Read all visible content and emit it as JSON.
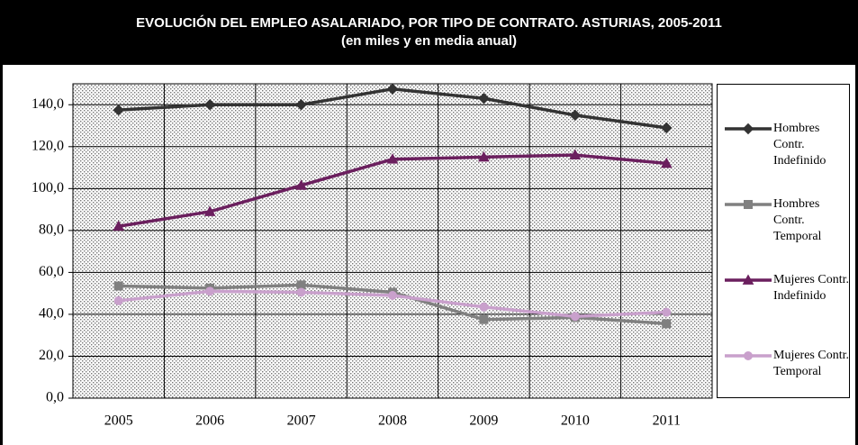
{
  "chart_data": {
    "type": "line",
    "title": "EVOLUCIÓN DEL EMPLEO ASALARIADO, POR TIPO DE CONTRATO. ASTURIAS, 2005-2011",
    "subtitle": "(en miles y en media anual)",
    "categories": [
      "2005",
      "2006",
      "2007",
      "2008",
      "2009",
      "2010",
      "2011"
    ],
    "series": [
      {
        "name": "Hombres Contr. Indefinido",
        "color": "#333333",
        "marker": "diamond",
        "values": [
          137.5,
          140,
          140,
          147.5,
          143,
          135,
          129
        ]
      },
      {
        "name": "Hombres Contr. Temporal",
        "color": "#808080",
        "marker": "square",
        "values": [
          53.5,
          52.5,
          54,
          50.5,
          37.5,
          38.5,
          35.5
        ]
      },
      {
        "name": "Mujeres Contr. Indefinido",
        "color": "#6b1f5e",
        "marker": "triangle",
        "values": [
          82,
          89,
          101.5,
          114,
          115,
          116,
          112
        ]
      },
      {
        "name": "Mujeres Contr. Temporal",
        "color": "#c9a0cc",
        "marker": "circle",
        "values": [
          46.5,
          51,
          50.5,
          49,
          43.5,
          39,
          41
        ]
      }
    ],
    "ylim": [
      0,
      150
    ],
    "yticks": [
      {
        "value": 0,
        "label": "0,0"
      },
      {
        "value": 20,
        "label": "20,0"
      },
      {
        "value": 40,
        "label": "40,0"
      },
      {
        "value": 60,
        "label": "60,0"
      },
      {
        "value": 80,
        "label": "80,0"
      },
      {
        "value": 100,
        "label": "100,0"
      },
      {
        "value": 120,
        "label": "120,0"
      },
      {
        "value": 140,
        "label": "140,0"
      }
    ],
    "grid": true,
    "legend": "right"
  }
}
